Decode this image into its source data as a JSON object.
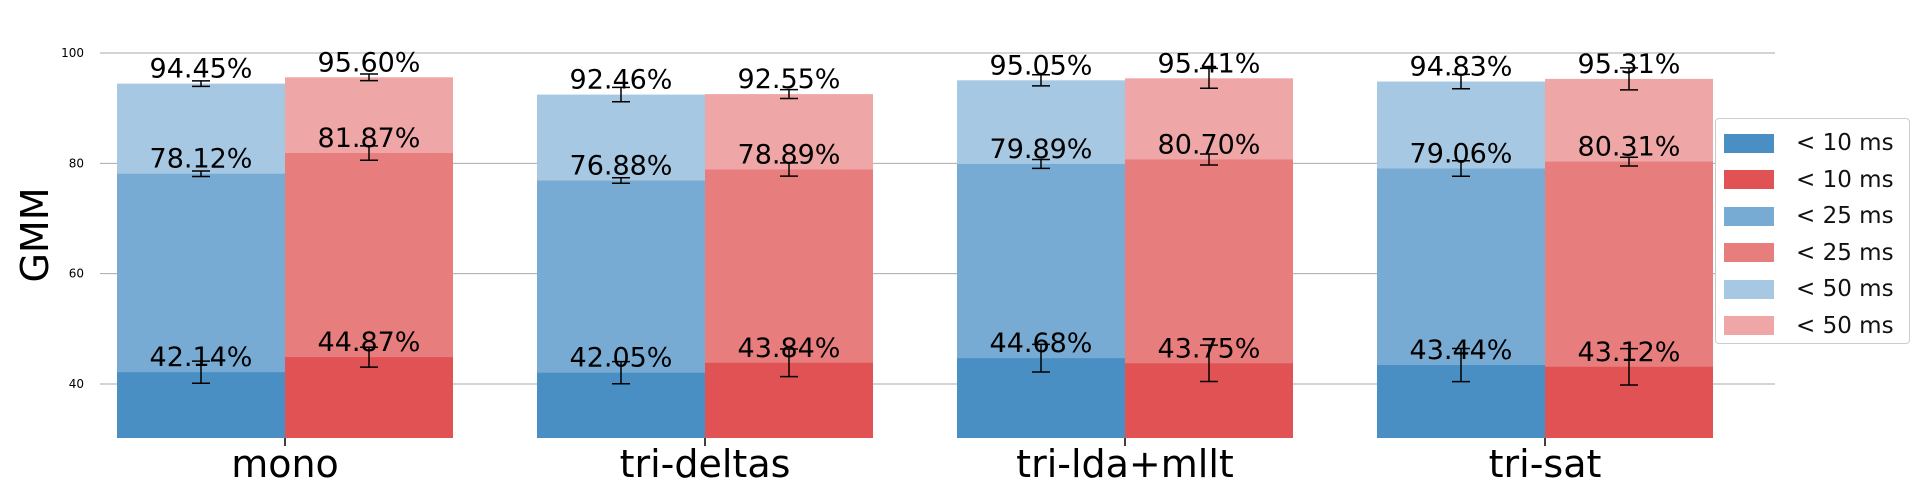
{
  "chart_data": {
    "type": "bar",
    "stacked_overlay": true,
    "title": "",
    "xlabel": "",
    "ylabel": "GMM",
    "ylim": [
      30,
      103
    ],
    "yticks": [
      40,
      60,
      80,
      100
    ],
    "grid": "horizontal",
    "legend_placement": "right",
    "categories": [
      "mono",
      "tri-deltas",
      "tri-lda+mllt",
      "tri-sat"
    ],
    "colors": {
      "blue_10": "#4a8fc4",
      "blue_25": "#77abd3",
      "blue_50": "#a7c8e2",
      "red_10": "#e05253",
      "red_25": "#e87d7d",
      "red_50": "#eea6a7",
      "grid": "#aaaaaa",
      "text": "#000000"
    },
    "groups": [
      {
        "color_family": "blue",
        "bars": [
          {
            "threshold": "< 10 ms",
            "values": [
              42.14,
              42.05,
              44.68,
              43.44
            ],
            "labels": [
              "42.14%",
              "42.05%",
              "44.68%",
              "43.44%"
            ],
            "errors": [
              2.0,
              2.0,
              2.5,
              3.0
            ]
          },
          {
            "threshold": "< 25 ms",
            "values": [
              78.12,
              76.88,
              79.89,
              79.06
            ],
            "labels": [
              "78.12%",
              "76.88%",
              "79.89%",
              "79.06%"
            ],
            "errors": [
              0.5,
              0.5,
              0.8,
              1.4
            ]
          },
          {
            "threshold": "< 50 ms",
            "values": [
              94.45,
              92.46,
              95.05,
              94.83
            ],
            "labels": [
              "94.45%",
              "92.46%",
              "95.05%",
              "94.83%"
            ],
            "errors": [
              0.5,
              1.3,
              1.0,
              1.3
            ]
          }
        ]
      },
      {
        "color_family": "red",
        "bars": [
          {
            "threshold": "< 10 ms",
            "values": [
              44.87,
              43.84,
              43.75,
              43.12
            ],
            "labels": [
              "44.87%",
              "43.84%",
              "43.75%",
              "43.12%"
            ],
            "errors": [
              1.8,
              2.5,
              3.3,
              3.3
            ]
          },
          {
            "threshold": "< 25 ms",
            "values": [
              81.87,
              78.89,
              80.7,
              80.31
            ],
            "labels": [
              "81.87%",
              "78.89%",
              "80.70%",
              "80.31%"
            ],
            "errors": [
              1.3,
              1.2,
              1.0,
              0.8
            ]
          },
          {
            "threshold": "< 50 ms",
            "values": [
              95.6,
              92.55,
              95.41,
              95.31
            ],
            "labels": [
              "95.60%",
              "92.55%",
              "95.41%",
              "95.31%"
            ],
            "errors": [
              0.6,
              0.8,
              1.8,
              2.0
            ]
          }
        ]
      }
    ],
    "legend": [
      {
        "label": "< 10 ms",
        "color": "#4a8fc4"
      },
      {
        "label": "< 10 ms",
        "color": "#e05253"
      },
      {
        "label": "< 25 ms",
        "color": "#77abd3"
      },
      {
        "label": "< 25 ms",
        "color": "#e87d7d"
      },
      {
        "label": "< 50 ms",
        "color": "#a7c8e2"
      },
      {
        "label": "< 50 ms",
        "color": "#eea6a7"
      }
    ]
  }
}
